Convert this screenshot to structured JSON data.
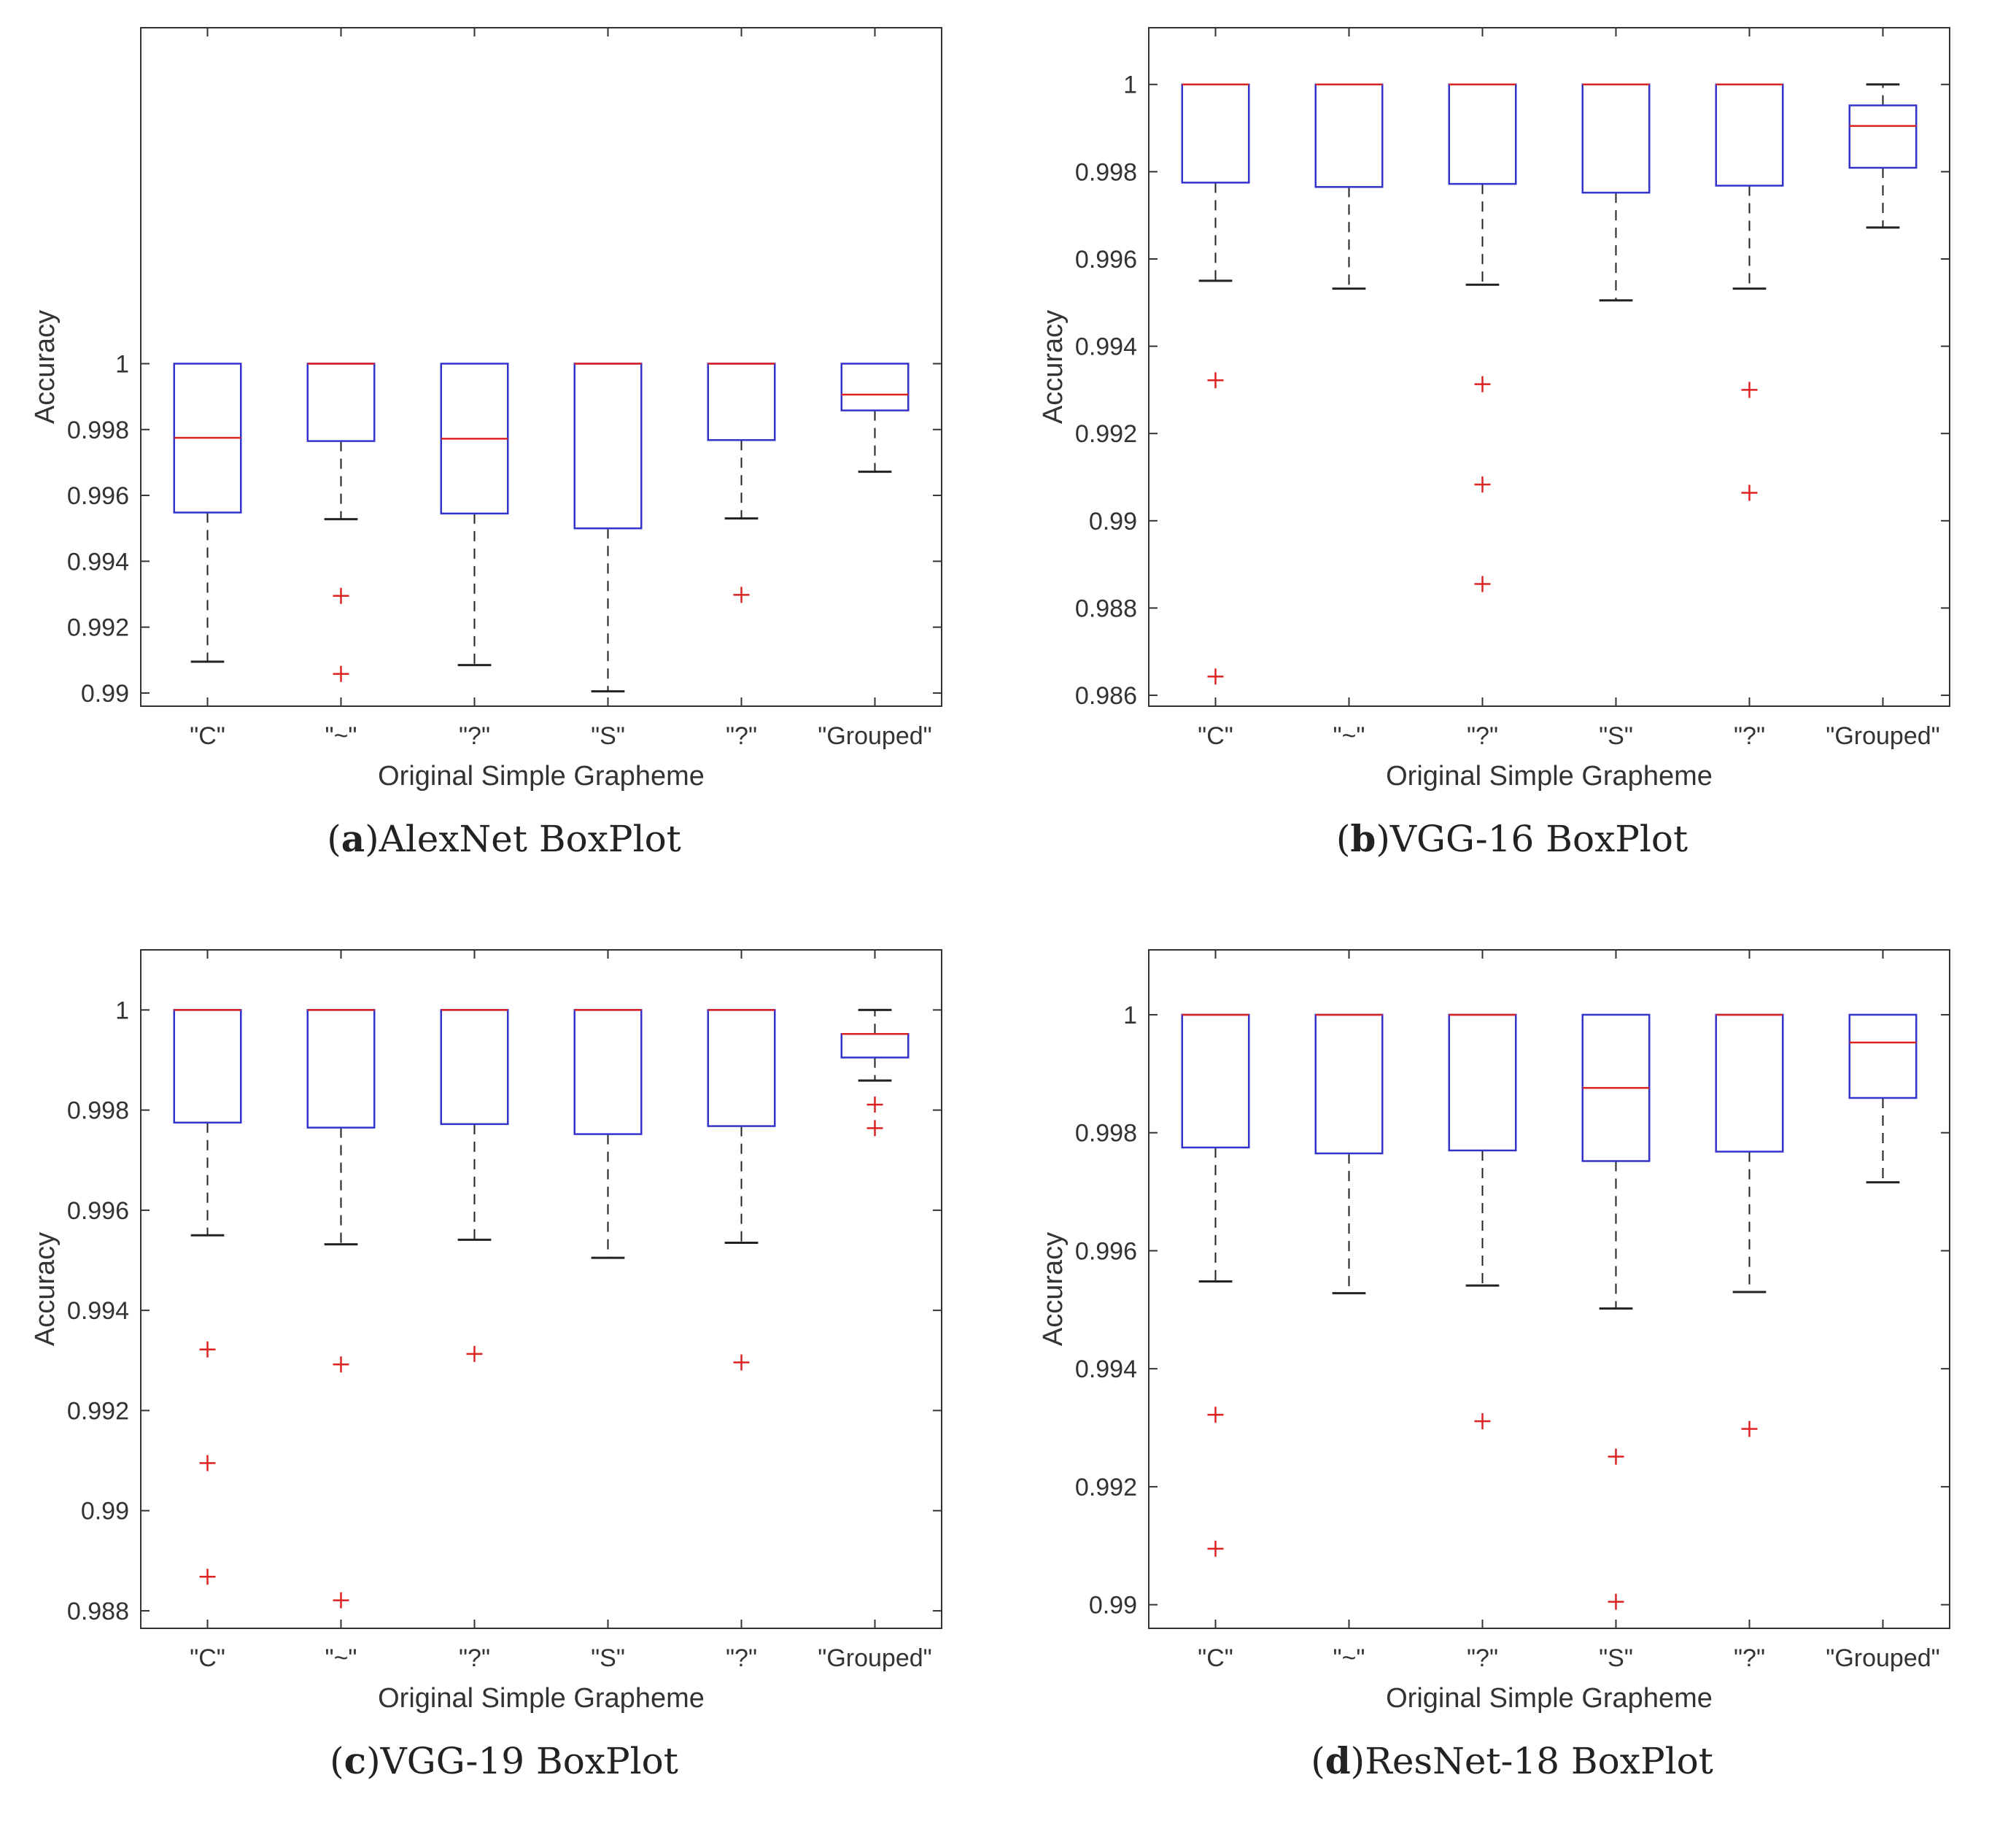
{
  "colors": {
    "box": "#3333cc",
    "median": "#dd2222",
    "whisker": "#222222",
    "outlier": "#dd2222",
    "axis": "#333333",
    "text": "#333333"
  },
  "chart_data": [
    {
      "type": "boxplot",
      "panel_label": "a",
      "caption": "AlexNet BoxPlot",
      "xlabel": "Original Simple Grapheme",
      "ylabel": "Accuracy",
      "categories": [
        "\"C\"",
        "\"~\"",
        "\"?\"",
        "\"S\"",
        "\"?\"",
        "\"Grouped\""
      ],
      "ylim": [
        0.9896,
        1.0102
      ],
      "yticks": [
        0.99,
        0.992,
        0.994,
        0.996,
        0.998,
        1
      ],
      "ytick_labels": [
        "0.99",
        "0.992",
        "0.994",
        "0.996",
        "0.998",
        "1"
      ],
      "boxes": [
        {
          "whisker_low": 0.99095,
          "q1": 0.99548,
          "median": 0.99775,
          "q3": 1.0,
          "whisker_high": 1.0,
          "outliers": []
        },
        {
          "whisker_low": 0.99528,
          "q1": 0.99765,
          "median": 1.0,
          "q3": 1.0,
          "whisker_high": 1.0,
          "outliers": [
            0.99295,
            0.99058
          ]
        },
        {
          "whisker_low": 0.99085,
          "q1": 0.99545,
          "median": 0.99772,
          "q3": 1.0,
          "whisker_high": 1.0,
          "outliers": []
        },
        {
          "whisker_low": 0.99005,
          "q1": 0.995,
          "median": 1.0,
          "q3": 1.0,
          "whisker_high": 1.0,
          "outliers": []
        },
        {
          "whisker_low": 0.9953,
          "q1": 0.99768,
          "median": 1.0,
          "q3": 1.0,
          "whisker_high": 1.0,
          "outliers": [
            0.99298
          ]
        },
        {
          "whisker_low": 0.99672,
          "q1": 0.99858,
          "median": 0.99906,
          "q3": 1.0,
          "whisker_high": 1.0,
          "outliers": []
        }
      ]
    },
    {
      "type": "boxplot",
      "panel_label": "b",
      "caption": "VGG-16 BoxPlot",
      "xlabel": "Original Simple Grapheme",
      "ylabel": "Accuracy",
      "categories": [
        "\"C\"",
        "\"~\"",
        "\"?\"",
        "\"S\"",
        "\"?\"",
        "\"Grouped\""
      ],
      "ylim": [
        0.98575,
        1.0013
      ],
      "yticks": [
        0.986,
        0.988,
        0.99,
        0.992,
        0.994,
        0.996,
        0.998,
        1
      ],
      "ytick_labels": [
        "0.986",
        "0.988",
        "0.99",
        "0.992",
        "0.994",
        "0.996",
        "0.998",
        "1"
      ],
      "boxes": [
        {
          "whisker_low": 0.9955,
          "q1": 0.99775,
          "median": 1.0,
          "q3": 1.0,
          "whisker_high": 1.0,
          "outliers": [
            0.99322,
            0.98643
          ]
        },
        {
          "whisker_low": 0.99532,
          "q1": 0.99765,
          "median": 1.0,
          "q3": 1.0,
          "whisker_high": 1.0,
          "outliers": []
        },
        {
          "whisker_low": 0.99541,
          "q1": 0.99772,
          "median": 1.0,
          "q3": 1.0,
          "whisker_high": 1.0,
          "outliers": [
            0.99313,
            0.99083,
            0.98855
          ]
        },
        {
          "whisker_low": 0.99505,
          "q1": 0.99752,
          "median": 1.0,
          "q3": 1.0,
          "whisker_high": 1.0,
          "outliers": []
        },
        {
          "whisker_low": 0.99532,
          "q1": 0.99768,
          "median": 1.0,
          "q3": 1.0,
          "whisker_high": 1.0,
          "outliers": [
            0.993,
            0.99064
          ]
        },
        {
          "whisker_low": 0.99672,
          "q1": 0.99809,
          "median": 0.99905,
          "q3": 0.99952,
          "whisker_high": 1.0,
          "outliers": []
        }
      ]
    },
    {
      "type": "boxplot",
      "panel_label": "c",
      "caption": "VGG-19 BoxPlot",
      "xlabel": "Original Simple Grapheme",
      "ylabel": "Accuracy",
      "categories": [
        "\"C\"",
        "\"~\"",
        "\"?\"",
        "\"S\"",
        "\"?\"",
        "\"Grouped\""
      ],
      "ylim": [
        0.98765,
        1.0012
      ],
      "yticks": [
        0.988,
        0.99,
        0.992,
        0.994,
        0.996,
        0.998,
        1
      ],
      "ytick_labels": [
        "0.988",
        "0.99",
        "0.992",
        "0.994",
        "0.996",
        "0.998",
        "1"
      ],
      "boxes": [
        {
          "whisker_low": 0.9955,
          "q1": 0.99775,
          "median": 1.0,
          "q3": 1.0,
          "whisker_high": 1.0,
          "outliers": [
            0.99322,
            0.99095,
            0.98868
          ]
        },
        {
          "whisker_low": 0.99532,
          "q1": 0.99765,
          "median": 1.0,
          "q3": 1.0,
          "whisker_high": 1.0,
          "outliers": [
            0.99292,
            0.98821
          ]
        },
        {
          "whisker_low": 0.99541,
          "q1": 0.99772,
          "median": 1.0,
          "q3": 1.0,
          "whisker_high": 1.0,
          "outliers": [
            0.99313
          ]
        },
        {
          "whisker_low": 0.99505,
          "q1": 0.99752,
          "median": 1.0,
          "q3": 1.0,
          "whisker_high": 1.0,
          "outliers": []
        },
        {
          "whisker_low": 0.99535,
          "q1": 0.99768,
          "median": 1.0,
          "q3": 1.0,
          "whisker_high": 1.0,
          "outliers": [
            0.99296
          ]
        },
        {
          "whisker_low": 0.99859,
          "q1": 0.99905,
          "median": 0.99952,
          "q3": 0.99952,
          "whisker_high": 1.0,
          "outliers": [
            0.99811,
            0.99764
          ]
        }
      ]
    },
    {
      "type": "boxplot",
      "panel_label": "d",
      "caption": "ResNet-18 BoxPlot",
      "xlabel": "Original Simple Grapheme",
      "ylabel": "Accuracy",
      "categories": [
        "\"C\"",
        "\"~\"",
        "\"?\"",
        "\"S\"",
        "\"?\"",
        "\"Grouped\""
      ],
      "ylim": [
        0.9896,
        1.0011
      ],
      "yticks": [
        0.99,
        0.992,
        0.994,
        0.996,
        0.998,
        1
      ],
      "ytick_labels": [
        "0.99",
        "0.992",
        "0.994",
        "0.996",
        "0.998",
        "1"
      ],
      "boxes": [
        {
          "whisker_low": 0.99548,
          "q1": 0.99775,
          "median": 1.0,
          "q3": 1.0,
          "whisker_high": 1.0,
          "outliers": [
            0.99322,
            0.99095
          ]
        },
        {
          "whisker_low": 0.99528,
          "q1": 0.99765,
          "median": 1.0,
          "q3": 1.0,
          "whisker_high": 1.0,
          "outliers": []
        },
        {
          "whisker_low": 0.99541,
          "q1": 0.9977,
          "median": 1.0,
          "q3": 1.0,
          "whisker_high": 1.0,
          "outliers": [
            0.99311
          ]
        },
        {
          "whisker_low": 0.99502,
          "q1": 0.99752,
          "median": 0.99876,
          "q3": 1.0,
          "whisker_high": 1.0,
          "outliers": [
            0.99251,
            0.99005
          ]
        },
        {
          "whisker_low": 0.9953,
          "q1": 0.99768,
          "median": 1.0,
          "q3": 1.0,
          "whisker_high": 1.0,
          "outliers": [
            0.99298
          ]
        },
        {
          "whisker_low": 0.99716,
          "q1": 0.99859,
          "median": 0.99953,
          "q3": 1.0,
          "whisker_high": 1.0,
          "outliers": []
        }
      ]
    }
  ]
}
